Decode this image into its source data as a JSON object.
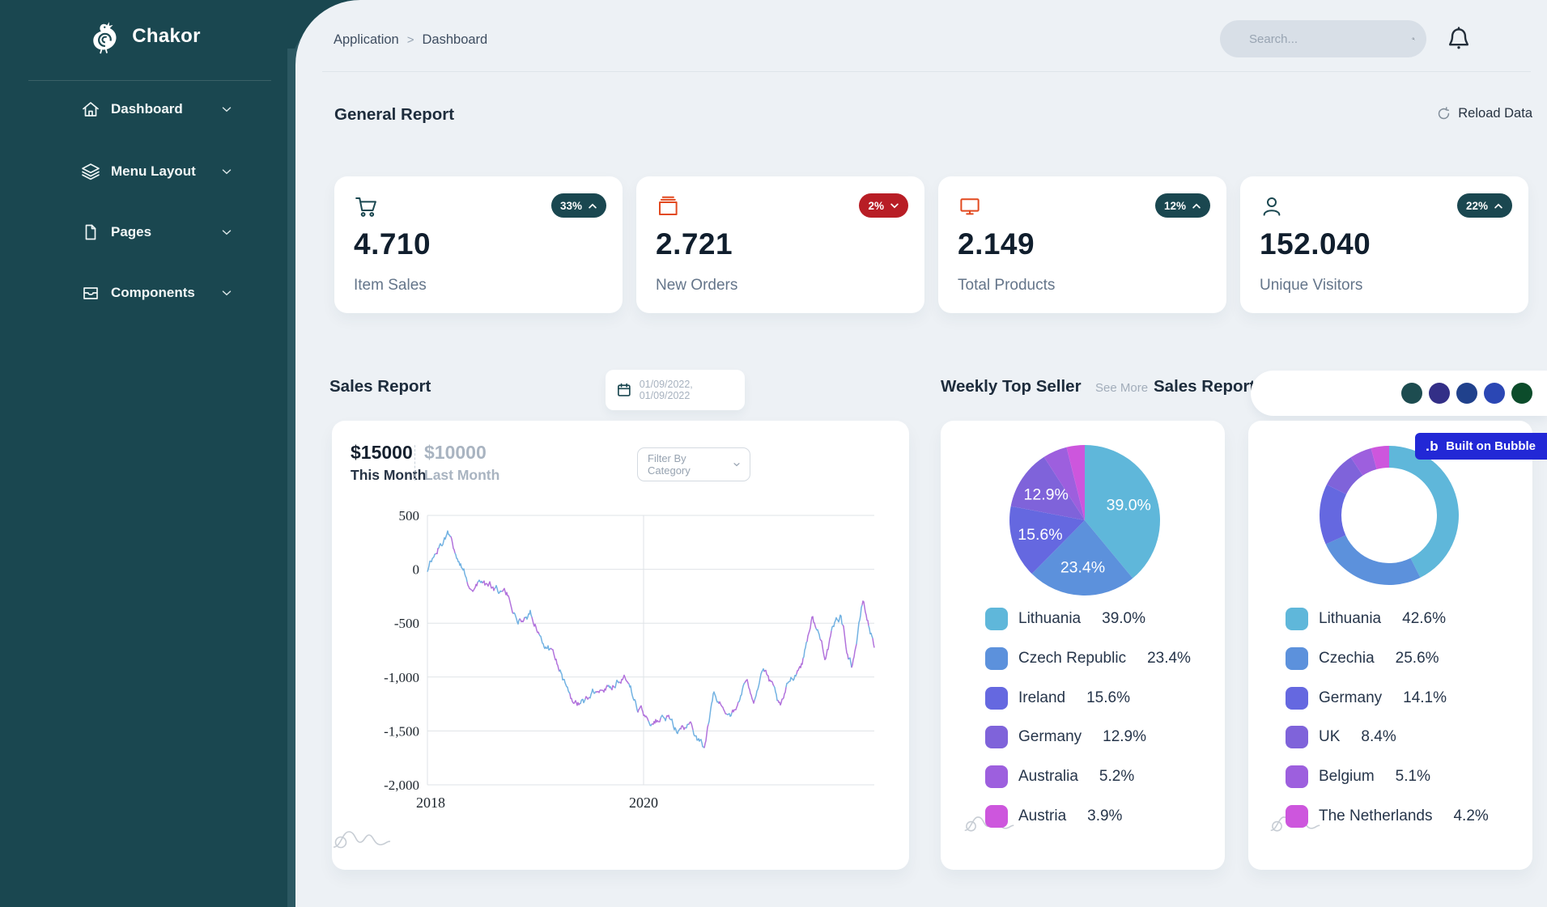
{
  "brand": {
    "name": "Chakor"
  },
  "sidebar": {
    "items": [
      {
        "label": "Dashboard",
        "icon": "home-icon"
      },
      {
        "label": "Menu Layout",
        "icon": "layers-icon"
      },
      {
        "label": "Pages",
        "icon": "page-icon"
      },
      {
        "label": "Components",
        "icon": "inbox-icon"
      }
    ]
  },
  "topbar": {
    "breadcrumb": {
      "parent": "Application",
      "separator": ">",
      "current": "Dashboard"
    },
    "search_placeholder": "Search..."
  },
  "general_report": {
    "title": "General Report",
    "reload_label": "Reload Data",
    "stats": [
      {
        "value": "4.710",
        "label": "Item Sales",
        "badge": "33%",
        "trend": "up",
        "icon": "cart-icon"
      },
      {
        "value": "2.721",
        "label": "New Orders",
        "badge": "2%",
        "trend": "down",
        "icon": "window-icon"
      },
      {
        "value": "2.149",
        "label": "Total Products",
        "badge": "12%",
        "trend": "up",
        "icon": "monitor-icon"
      },
      {
        "value": "152.040",
        "label": "Unique Visitors",
        "badge": "22%",
        "trend": "up",
        "icon": "user-icon"
      }
    ]
  },
  "badge_colors": {
    "up": "#1a4750",
    "down": "#b81d25"
  },
  "sales_report": {
    "title": "Sales Report",
    "date_value": "01/09/2022, 01/09/2022",
    "this_month_value": "$15000",
    "this_month_label": "This Month",
    "last_month_value": "$10000",
    "last_month_label": "Last Month",
    "filter_placeholder": "Filter By Category"
  },
  "weekly_top_seller": {
    "title": "Weekly Top Seller",
    "see_more": "See More"
  },
  "sales_report_right": {
    "title": "Sales Report"
  },
  "bubble_badge": {
    "logo": ".b",
    "text": "Built on Bubble",
    "color": "#2228d6"
  },
  "theme_dots": [
    "#1d4c50",
    "#332f87",
    "#20418c",
    "#2b47b4",
    "#0c4c2b"
  ],
  "chart_data": [
    {
      "type": "line",
      "title": "Sales Report",
      "x_ticks": [
        "2018",
        "2020"
      ],
      "y_ticks": [
        500,
        0,
        -500,
        -1000,
        -1500,
        -2000
      ],
      "ylim": [
        -2000,
        500
      ],
      "grid": true,
      "series": [
        {
          "name": "This Month",
          "color": "#72b2e2"
        },
        {
          "name": "Last Month",
          "color": "#b273dc"
        }
      ],
      "trend_points": [
        [
          0,
          0
        ],
        [
          0.045,
          350
        ],
        [
          0.07,
          80
        ],
        [
          0.095,
          -130
        ],
        [
          0.12,
          -110
        ],
        [
          0.15,
          -200
        ],
        [
          0.18,
          -260
        ],
        [
          0.2,
          -480
        ],
        [
          0.23,
          -400
        ],
        [
          0.27,
          -700
        ],
        [
          0.3,
          -950
        ],
        [
          0.32,
          -1250
        ],
        [
          0.35,
          -1230
        ],
        [
          0.38,
          -1100
        ],
        [
          0.41,
          -1050
        ],
        [
          0.44,
          -950
        ],
        [
          0.47,
          -1280
        ],
        [
          0.5,
          -1400
        ],
        [
          0.53,
          -1380
        ],
        [
          0.56,
          -1480
        ],
        [
          0.59,
          -1470
        ],
        [
          0.62,
          -1650
        ],
        [
          0.64,
          -1180
        ],
        [
          0.66,
          -1280
        ],
        [
          0.69,
          -1330
        ],
        [
          0.71,
          -1050
        ],
        [
          0.73,
          -1180
        ],
        [
          0.75,
          -900
        ],
        [
          0.77,
          -1100
        ],
        [
          0.79,
          -1330
        ],
        [
          0.81,
          -1050
        ],
        [
          0.84,
          -830
        ],
        [
          0.86,
          -430
        ],
        [
          0.875,
          -600
        ],
        [
          0.89,
          -780
        ],
        [
          0.91,
          -550
        ],
        [
          0.925,
          -430
        ],
        [
          0.94,
          -760
        ],
        [
          0.95,
          -880
        ],
        [
          0.965,
          -550
        ],
        [
          0.975,
          -290
        ],
        [
          0.985,
          -480
        ],
        [
          1,
          -700
        ]
      ]
    },
    {
      "type": "pie",
      "title": "Weekly Top Seller",
      "categories": [
        "Lithuania",
        "Czech Republic",
        "Ireland",
        "Germany",
        "Australia",
        "Austria"
      ],
      "values": [
        39.0,
        23.4,
        15.6,
        12.9,
        5.2,
        3.9
      ],
      "legend_values": [
        "39.0%",
        "23.4%",
        "15.6%",
        "12.9%",
        "5.2%",
        "3.9%"
      ],
      "slice_labels": [
        "39.0%",
        "23.4%",
        "15.6%",
        "12.9%",
        "",
        ""
      ],
      "colors": [
        "#5fb7da",
        "#5c91dc",
        "#6568e0",
        "#7f63da",
        "#9d5fde",
        "#cd56dd"
      ],
      "legend_position": "bottom"
    },
    {
      "type": "donut",
      "title": "Sales Report",
      "categories": [
        "Lithuania",
        "Czechia",
        "Germany",
        "UK",
        "Belgium",
        "The Netherlands"
      ],
      "values": [
        42.6,
        25.6,
        14.1,
        8.4,
        5.1,
        4.2
      ],
      "legend_values": [
        "42.6%",
        "25.6%",
        "14.1%",
        "8.4%",
        "5.1%",
        "4.2%"
      ],
      "colors": [
        "#5fb7da",
        "#5c91dc",
        "#6568e0",
        "#7f63da",
        "#9d5fde",
        "#cd56dd"
      ],
      "legend_position": "bottom"
    }
  ]
}
